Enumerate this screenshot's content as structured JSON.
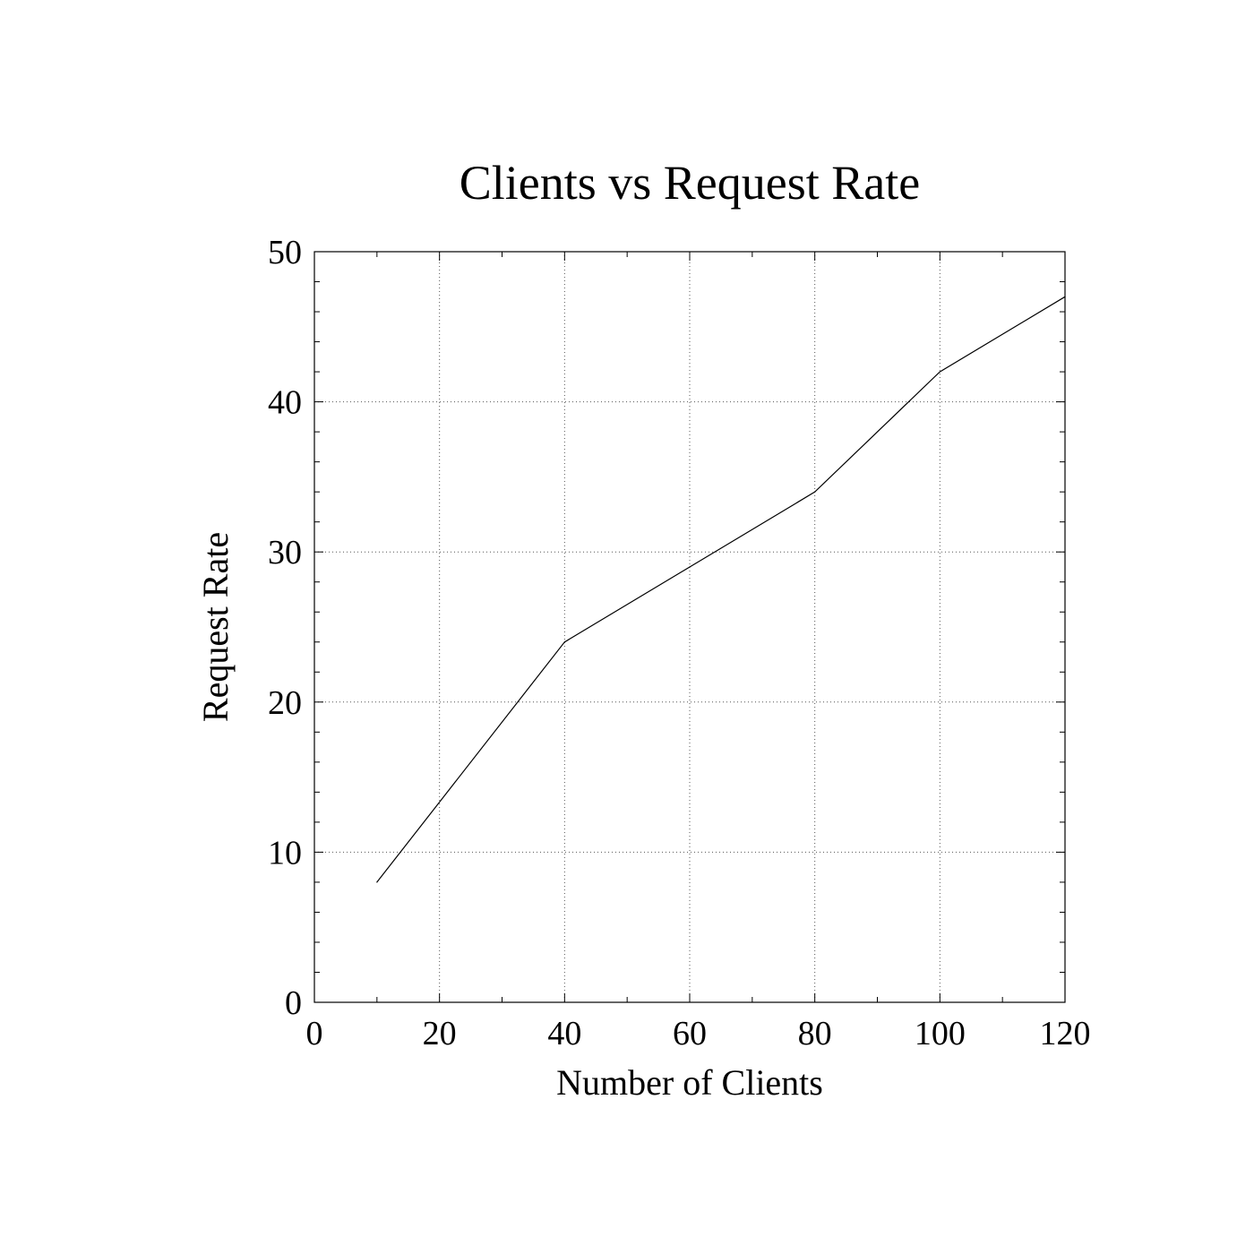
{
  "chart_data": {
    "type": "line",
    "title": "Clients vs Request Rate",
    "xlabel": "Number of Clients",
    "ylabel": "Request Rate",
    "xlim": [
      0,
      120
    ],
    "ylim": [
      0,
      50
    ],
    "x_ticks": [
      0,
      20,
      40,
      60,
      80,
      100,
      120
    ],
    "y_ticks": [
      0,
      10,
      20,
      30,
      40,
      50
    ],
    "x_minor_step": 10,
    "y_minor_step": 2,
    "grid": true,
    "legend": "none",
    "line_color": "#000000",
    "series": [
      {
        "x": [
          10,
          40,
          60,
          80,
          100,
          120
        ],
        "y": [
          8,
          24,
          29,
          34,
          42,
          47
        ]
      }
    ]
  }
}
